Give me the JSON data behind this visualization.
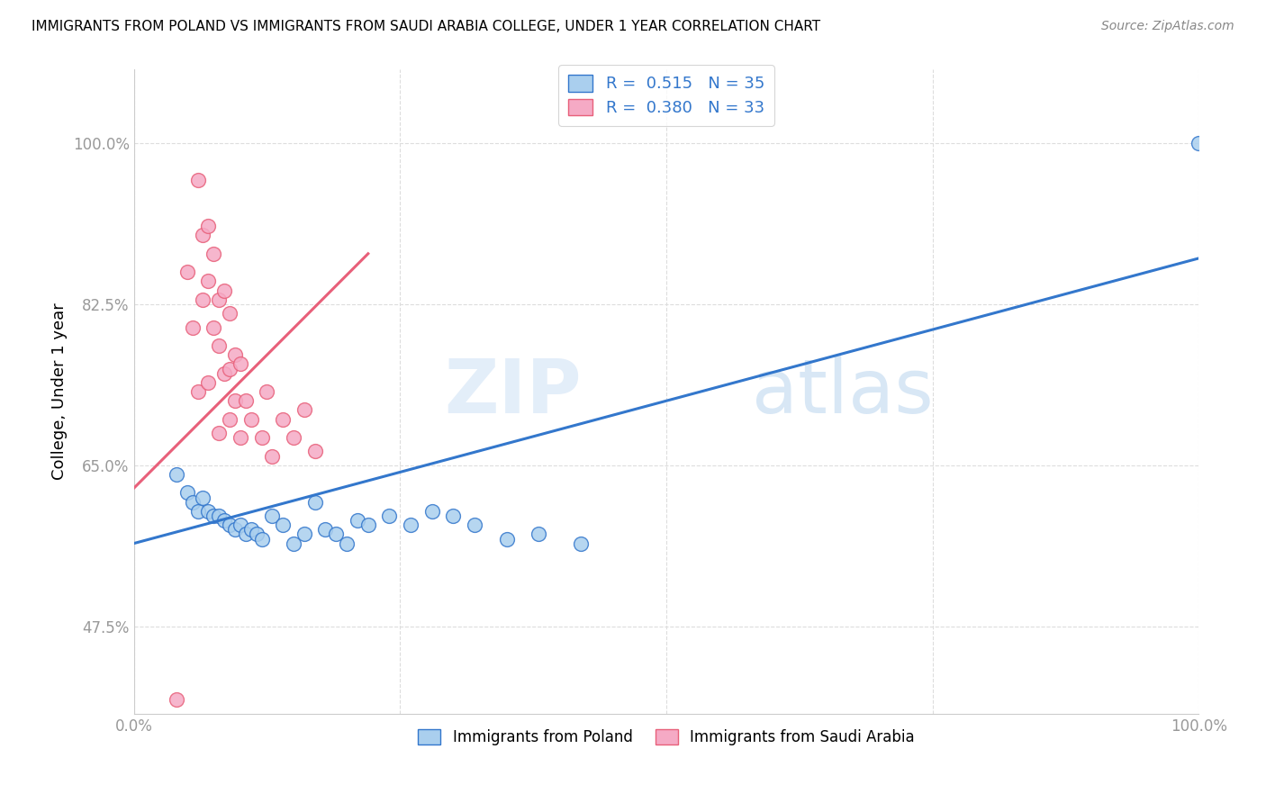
{
  "title": "IMMIGRANTS FROM POLAND VS IMMIGRANTS FROM SAUDI ARABIA COLLEGE, UNDER 1 YEAR CORRELATION CHART",
  "source": "Source: ZipAtlas.com",
  "xlabel": "",
  "ylabel": "College, Under 1 year",
  "xmin": 0.0,
  "xmax": 1.0,
  "ymin": 0.38,
  "ymax": 1.08,
  "yticks": [
    0.475,
    0.65,
    0.825,
    1.0
  ],
  "ytick_labels": [
    "47.5%",
    "65.0%",
    "82.5%",
    "100.0%"
  ],
  "xticks": [
    0.0,
    0.25,
    0.5,
    0.75,
    1.0
  ],
  "xtick_labels": [
    "0.0%",
    "",
    "",
    "",
    "100.0%"
  ],
  "r_poland": 0.515,
  "n_poland": 35,
  "r_saudi": 0.38,
  "n_saudi": 33,
  "poland_color": "#aacfee",
  "saudi_color": "#f5aac5",
  "poland_line_color": "#3377cc",
  "saudi_line_color": "#e8607a",
  "watermark_zip": "ZIP",
  "watermark_atlas": "atlas",
  "poland_x": [
    0.04,
    0.05,
    0.055,
    0.06,
    0.065,
    0.07,
    0.075,
    0.08,
    0.085,
    0.09,
    0.095,
    0.1,
    0.105,
    0.11,
    0.115,
    0.12,
    0.13,
    0.14,
    0.15,
    0.16,
    0.17,
    0.18,
    0.19,
    0.2,
    0.21,
    0.22,
    0.24,
    0.26,
    0.28,
    0.3,
    0.32,
    0.35,
    0.38,
    0.42,
    1.0
  ],
  "poland_y": [
    0.64,
    0.62,
    0.61,
    0.6,
    0.615,
    0.6,
    0.595,
    0.595,
    0.59,
    0.585,
    0.58,
    0.585,
    0.575,
    0.58,
    0.575,
    0.57,
    0.595,
    0.585,
    0.565,
    0.575,
    0.61,
    0.58,
    0.575,
    0.565,
    0.59,
    0.585,
    0.595,
    0.585,
    0.6,
    0.595,
    0.585,
    0.57,
    0.575,
    0.565,
    1.0
  ],
  "saudi_x": [
    0.04,
    0.05,
    0.055,
    0.06,
    0.065,
    0.065,
    0.07,
    0.07,
    0.075,
    0.075,
    0.08,
    0.08,
    0.085,
    0.085,
    0.09,
    0.09,
    0.09,
    0.095,
    0.095,
    0.1,
    0.1,
    0.105,
    0.11,
    0.12,
    0.125,
    0.13,
    0.14,
    0.15,
    0.16,
    0.17,
    0.06,
    0.07,
    0.08
  ],
  "saudi_y": [
    0.395,
    0.86,
    0.8,
    0.96,
    0.9,
    0.83,
    0.91,
    0.85,
    0.88,
    0.8,
    0.83,
    0.78,
    0.84,
    0.75,
    0.815,
    0.755,
    0.7,
    0.77,
    0.72,
    0.76,
    0.68,
    0.72,
    0.7,
    0.68,
    0.73,
    0.66,
    0.7,
    0.68,
    0.71,
    0.665,
    0.73,
    0.74,
    0.685
  ],
  "poland_line_x0": 0.0,
  "poland_line_y0": 0.565,
  "poland_line_x1": 1.0,
  "poland_line_y1": 0.875,
  "saudi_line_x0": 0.0,
  "saudi_line_y0": 0.625,
  "saudi_line_x1": 0.22,
  "saudi_line_y1": 0.88,
  "background_color": "#ffffff",
  "grid_color": "#dddddd"
}
